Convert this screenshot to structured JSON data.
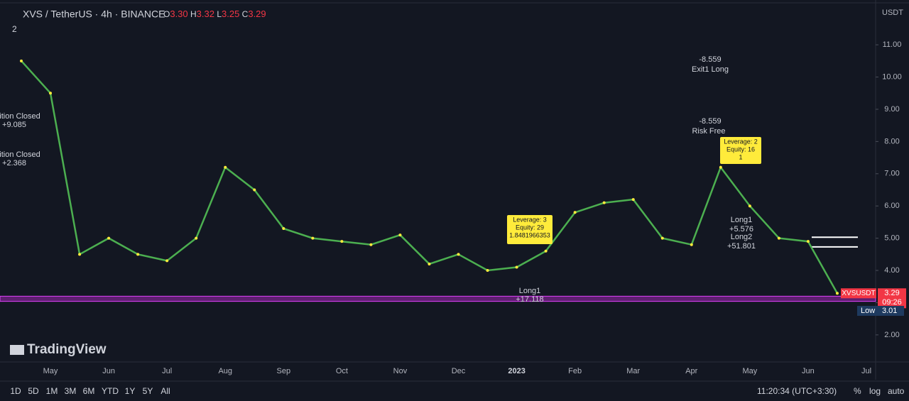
{
  "header": {
    "symbol": "XVS / TetherUS · 4h · BINANCE",
    "open_label": "O",
    "open": "3.30",
    "high_label": "H",
    "high": "3.32",
    "low_label": "L",
    "low": "3.25",
    "close_label": "C",
    "close": "3.29",
    "indicator_count": "2"
  },
  "chart_data": {
    "type": "line",
    "categories": [
      null,
      "May",
      null,
      "Jun",
      null,
      "Jul",
      null,
      "Aug",
      null,
      "Sep",
      null,
      "Oct",
      null,
      "Nov",
      null,
      "Dec",
      null,
      "2023",
      null,
      "Feb",
      null,
      "Mar",
      null,
      "Apr",
      null,
      "May",
      null,
      "Jun",
      null,
      "Jul"
    ],
    "values": [
      10.5,
      9.5,
      4.5,
      5.0,
      4.5,
      4.3,
      5.0,
      7.2,
      6.5,
      5.3,
      5.0,
      4.9,
      4.8,
      5.1,
      4.2,
      4.5,
      4.0,
      4.1,
      4.6,
      5.8,
      6.1,
      6.2,
      5.0,
      4.8,
      7.2,
      6.0,
      5.0,
      4.9,
      3.29,
      null
    ],
    "color": "#4caf50",
    "ylim": [
      1.16,
      12.39
    ],
    "yticks": [
      {
        "value": 2,
        "label": "2.00"
      },
      {
        "value": 3,
        "label": "3.00"
      },
      {
        "value": 4,
        "label": "4.00"
      },
      {
        "value": 5,
        "label": "5.00"
      },
      {
        "value": 6,
        "label": "6.00"
      },
      {
        "value": 7,
        "label": "7.00"
      },
      {
        "value": 8,
        "label": "8.00"
      },
      {
        "value": 9,
        "label": "9.00"
      },
      {
        "value": 10,
        "label": "10.00"
      },
      {
        "value": 11,
        "label": "11.00"
      }
    ],
    "y_unit": "USDT",
    "hlines": [
      5.03,
      4.73
    ],
    "band": [
      3.04,
      3.2
    ],
    "annotations": [
      "-8.559",
      "Exit1 Long",
      "-8.559",
      "Risk Free",
      "ition Closed",
      "+9.085",
      "ition Closed",
      "+2.368",
      "Long1",
      "+17.118",
      "Long1",
      "+5.576",
      "Long2",
      "+51.801"
    ],
    "boxes": [
      [
        "Leverage: 3",
        "Equity: 29",
        "1.8481966353"
      ],
      [
        "Leverage: 2",
        "Equity: 16",
        "1"
      ]
    ],
    "price_tag": {
      "symbol": "XVSUSDT",
      "price": 3.29,
      "countdown": "09:26"
    },
    "low_tag": {
      "label": "Low",
      "price": 3.01
    }
  },
  "logo": "TradingView",
  "toolbar": {
    "ranges": [
      "1D",
      "5D",
      "1M",
      "3M",
      "6M",
      "YTD",
      "1Y",
      "5Y",
      "All"
    ],
    "clock": "11:20:34 (UTC+3:30)",
    "percent": "%",
    "log": "log",
    "auto": "auto"
  }
}
